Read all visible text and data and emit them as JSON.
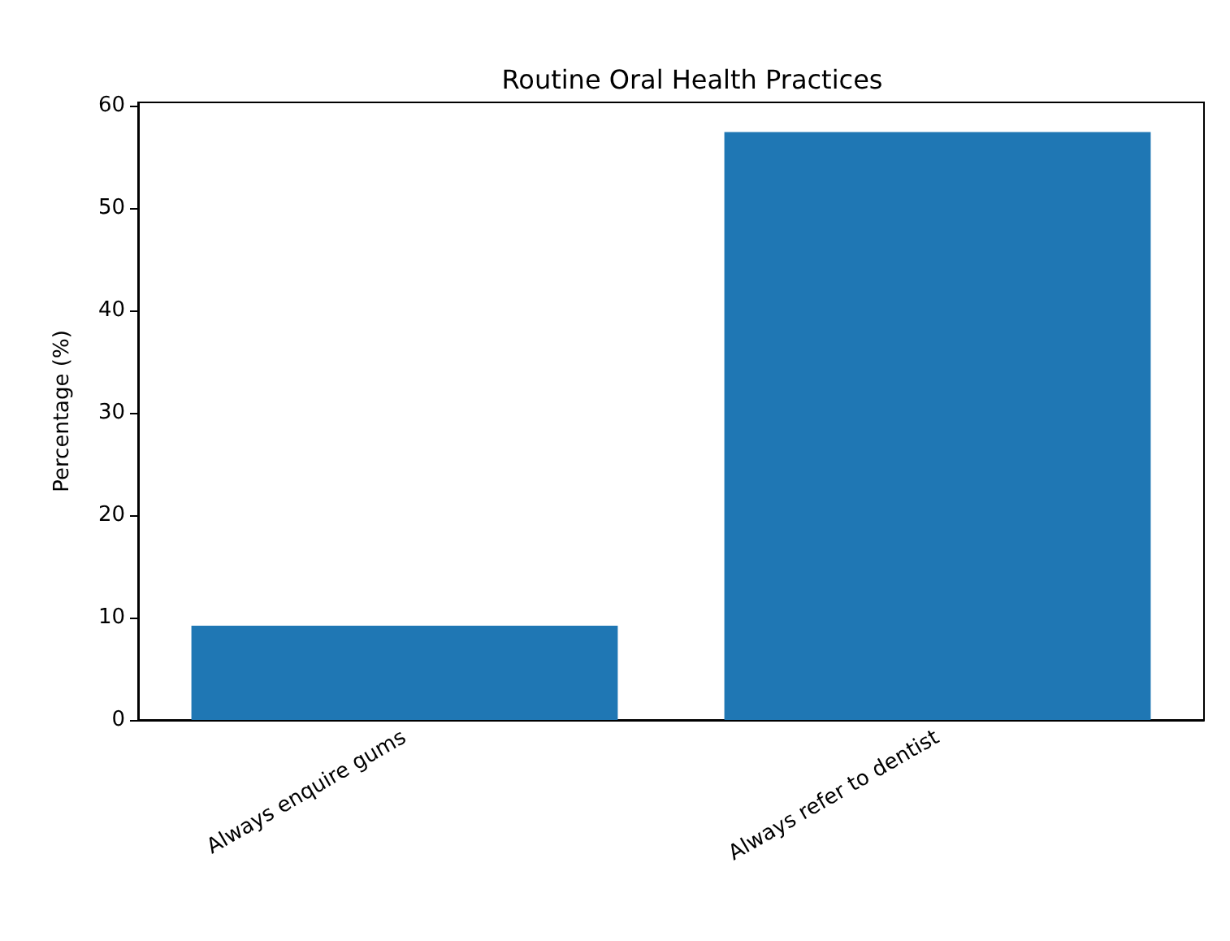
{
  "chart_data": {
    "type": "bar",
    "title": "Routine Oral Health Practices",
    "ylabel": "Percentage (%)",
    "categories": [
      "Always enquire gums",
      "Always refer to dentist"
    ],
    "values": [
      9.2,
      57.4
    ],
    "color": "#1f77b4",
    "ylim": [
      0,
      60.3
    ],
    "yticks": [
      0,
      10,
      20,
      30,
      40,
      50,
      60
    ],
    "grid": false
  }
}
